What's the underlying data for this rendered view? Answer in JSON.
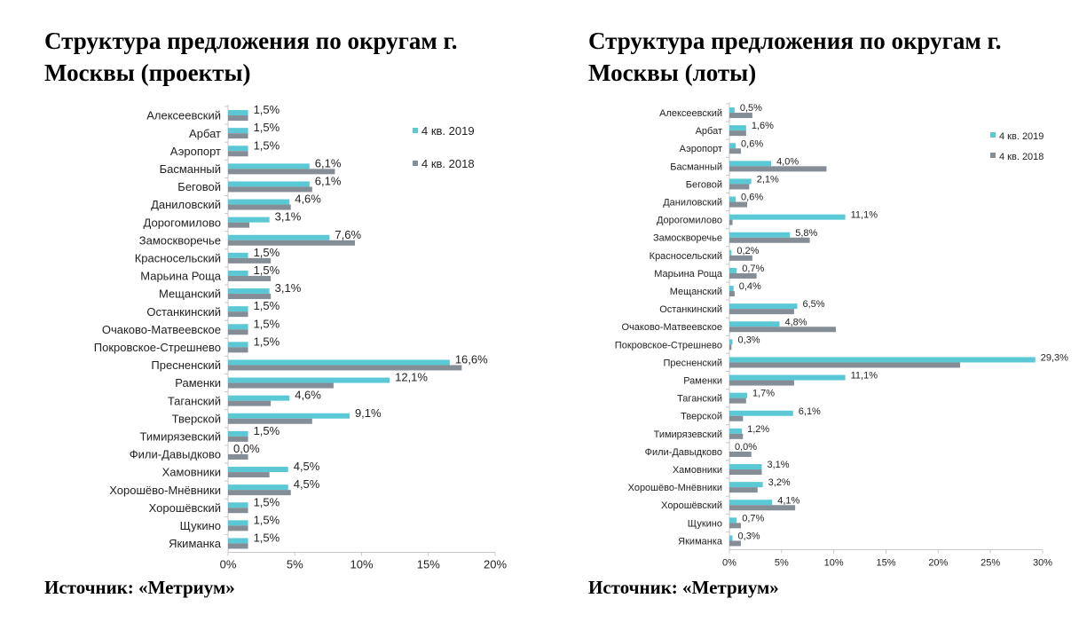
{
  "colors": {
    "series_2019": "#5bc8d6",
    "series_2018": "#858d96",
    "axis": "#c8c8c8",
    "text": "#222222"
  },
  "left": {
    "title_line1": "Структура предложения по округам г.",
    "title_line2": "Москвы (проекты)",
    "source": "Источник: «Метриум»"
  },
  "right": {
    "title_line1": "Структура предложения по округам г.",
    "title_line2": "Москвы (лоты)",
    "source": "Источник: «Метриум»"
  },
  "chart_data": [
    {
      "type": "bar",
      "orientation": "horizontal",
      "categories": [
        "Алексеевский",
        "Арбат",
        "Аэропорт",
        "Басманный",
        "Беговой",
        "Даниловский",
        "Дорогомилово",
        "Замоскворечье",
        "Красносельский",
        "Марьина Роща",
        "Мещанский",
        "Останкинский",
        "Очаково-Матвеевское",
        "Покровское-Стрешнево",
        "Пресненский",
        "Раменки",
        "Таганский",
        "Тверской",
        "Тимирязевский",
        "Фили-Давыдково",
        "Хамовники",
        "Хорошёво-Мнёвники",
        "Хорошёвский",
        "Щукино",
        "Якиманка"
      ],
      "series": [
        {
          "name": "4 кв. 2019",
          "values": [
            1.5,
            1.5,
            1.5,
            6.1,
            6.1,
            4.6,
            3.1,
            7.6,
            1.5,
            1.5,
            3.1,
            1.5,
            1.5,
            1.5,
            16.6,
            12.1,
            4.6,
            9.1,
            1.5,
            0.0,
            4.5,
            4.5,
            1.5,
            1.5,
            1.5
          ]
        },
        {
          "name": "4 кв. 2018",
          "values": [
            1.5,
            1.5,
            1.5,
            8.0,
            6.3,
            4.7,
            1.6,
            9.5,
            3.2,
            3.2,
            3.2,
            1.5,
            1.5,
            1.5,
            17.5,
            7.9,
            3.2,
            6.3,
            1.5,
            1.5,
            3.1,
            4.7,
            1.5,
            1.5,
            1.5
          ]
        }
      ],
      "data_labels": [
        "1,5%",
        "1,5%",
        "1,5%",
        "6,1%",
        "6,1%",
        "4,6%",
        "3,1%",
        "7,6%",
        "1,5%",
        "1,5%",
        "3,1%",
        "1,5%",
        "1,5%",
        "1,5%",
        "16,6%",
        "12,1%",
        "4,6%",
        "9,1%",
        "1,5%",
        "0,0%",
        "4,5%",
        "4,5%",
        "1,5%",
        "1,5%",
        "1,5%"
      ],
      "xlim": [
        0,
        20
      ],
      "xticks": [
        0,
        5,
        10,
        15,
        20
      ],
      "xtick_labels": [
        "0%",
        "5%",
        "10%",
        "15%",
        "20%"
      ],
      "legend_position": "top-right",
      "grid": false
    },
    {
      "type": "bar",
      "orientation": "horizontal",
      "categories": [
        "Алексеевский",
        "Арбат",
        "Аэропорт",
        "Басманный",
        "Беговой",
        "Даниловский",
        "Дорогомилово",
        "Замоскворечье",
        "Красносельский",
        "Марьина Роща",
        "Мещанский",
        "Останкинский",
        "Очаково-Матвеевское",
        "Покровское-Стрешнево",
        "Пресненский",
        "Раменки",
        "Таганский",
        "Тверской",
        "Тимирязевский",
        "Фили-Давыдково",
        "Хамовники",
        "Хорошёво-Мнёвники",
        "Хорошёвский",
        "Щукино",
        "Якиманка"
      ],
      "series": [
        {
          "name": "4 кв. 2019",
          "values": [
            0.5,
            1.6,
            0.6,
            4.0,
            2.1,
            0.6,
            11.1,
            5.8,
            0.2,
            0.7,
            0.4,
            6.5,
            4.8,
            0.3,
            29.3,
            11.1,
            1.7,
            6.1,
            1.2,
            0.0,
            3.1,
            3.2,
            4.1,
            0.7,
            0.3
          ]
        },
        {
          "name": "4 кв. 2018",
          "values": [
            2.2,
            1.6,
            1.1,
            9.3,
            1.9,
            1.7,
            0.3,
            7.7,
            2.2,
            2.6,
            0.5,
            6.2,
            10.2,
            0.2,
            22.1,
            6.2,
            1.6,
            1.3,
            1.3,
            2.1,
            3.1,
            2.7,
            6.3,
            1.1,
            1.1
          ]
        }
      ],
      "data_labels": [
        "0,5%",
        "1,6%",
        "0,6%",
        "4,0%",
        "2,1%",
        "0,6%",
        "11,1%",
        "5,8%",
        "0,2%",
        "0,7%",
        "0,4%",
        "6,5%",
        "4,8%",
        "0,3%",
        "29,3%",
        "11,1%",
        "1,7%",
        "6,1%",
        "1,2%",
        "0,0%",
        "3,1%",
        "3,2%",
        "4,1%",
        "0,7%",
        "0,3%"
      ],
      "xlim": [
        0,
        30
      ],
      "xticks": [
        0,
        5,
        10,
        15,
        20,
        25,
        30
      ],
      "xtick_labels": [
        "0%",
        "5%",
        "10%",
        "15%",
        "20%",
        "25%",
        "30%"
      ],
      "legend_position": "top-right",
      "grid": false
    }
  ]
}
